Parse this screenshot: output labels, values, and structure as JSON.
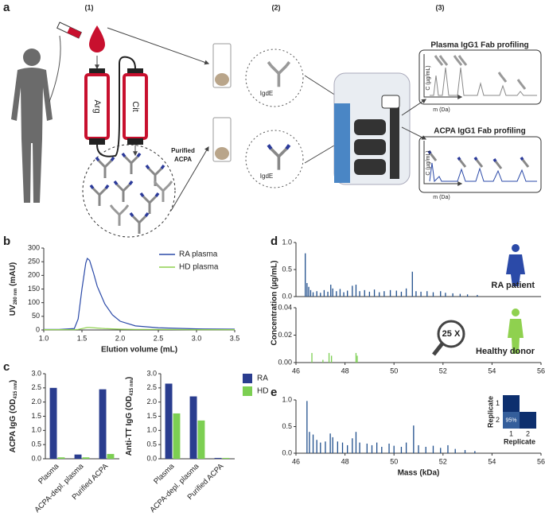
{
  "panel_labels": [
    "a",
    "b",
    "c",
    "d",
    "e"
  ],
  "schematic": {
    "steps": [
      "(1)",
      "(2)",
      "(3)"
    ],
    "columns": [
      "Arg",
      "Cit"
    ],
    "purified": [
      "Purified",
      "ACPA"
    ],
    "enzyme": [
      "IgdE",
      "IgdE"
    ],
    "profiles": [
      {
        "title": "Plasma IgG1 Fab profiling",
        "ylabel": "C (µg/mL)",
        "xlabel": "m (Da)"
      },
      {
        "title": "ACPA IgG1 Fab profiling",
        "ylabel": "C (µg/mL)",
        "xlabel": "m (Da)"
      }
    ]
  },
  "chart_data": [
    {
      "type": "line",
      "xlabel": "Elution volume (mL)",
      "ylabel": {
        "text": "UV",
        "sub": "280 nm",
        "suffix": " (mAU)"
      },
      "x": [
        1.0,
        1.2,
        1.4,
        1.45,
        1.5,
        1.55,
        1.57,
        1.6,
        1.65,
        1.7,
        1.8,
        1.9,
        2.0,
        2.2,
        2.5,
        3.0,
        3.5
      ],
      "series": [
        {
          "name": "RA plasma",
          "color": "#2b4aa8",
          "values": [
            2,
            2,
            5,
            40,
            150,
            245,
            262,
            255,
            210,
            160,
            95,
            55,
            32,
            15,
            8,
            4,
            3
          ]
        },
        {
          "name": "HD plasma",
          "color": "#8fd14f",
          "values": [
            1,
            1,
            1,
            2,
            5,
            8,
            9,
            9,
            8,
            7,
            5,
            4,
            3,
            2,
            2,
            1,
            1
          ]
        }
      ],
      "xlim": [
        1.0,
        3.5
      ],
      "ylim": [
        0,
        300
      ],
      "xticks": [
        {
          "value": 1,
          "label": "1.0"
        },
        {
          "value": 1.5,
          "label": "1.5"
        },
        {
          "value": 2,
          "label": "2.0"
        },
        {
          "value": 2.5,
          "label": "2.5"
        },
        {
          "value": 3,
          "label": "3.0"
        },
        {
          "value": 3.5,
          "label": "3.5"
        }
      ],
      "yticks": [
        0,
        50,
        100,
        150,
        200,
        250,
        300
      ],
      "legend": "upper right"
    },
    {
      "type": "bar",
      "ylabel": {
        "text": "ACPA IgG (OD",
        "sub": "415 nm",
        "suffix": ")"
      },
      "categories": [
        "Plasma",
        "ACPA-depl. plasma",
        "Purified ACPA"
      ],
      "series": [
        {
          "color": "#2a3d8f",
          "values": [
            2.5,
            0.15,
            2.45
          ]
        },
        {
          "color": "#7ccf52",
          "values": [
            0.05,
            0.05,
            0.17
          ]
        }
      ],
      "ylim": [
        0,
        3
      ],
      "yticks": [
        {
          "value": 0,
          "label": "0.0"
        },
        {
          "value": 0.5,
          "label": "0.5"
        },
        {
          "value": 1,
          "label": "1.0"
        },
        {
          "value": 1.5,
          "label": "1.5"
        },
        {
          "value": 2,
          "label": "2.0"
        },
        {
          "value": 2.5,
          "label": "2.5"
        },
        {
          "value": 3,
          "label": "3.0"
        }
      ]
    },
    {
      "type": "bar",
      "ylabel": {
        "text": "Anti-TT IgG (OD",
        "sub": "415 nm",
        "suffix": ")"
      },
      "categories": [
        "Plasma",
        "ACPA-depl. plasma",
        "Purified ACPA"
      ],
      "series": [
        {
          "name": "RA",
          "color": "#2a3d8f",
          "values": [
            2.65,
            2.2,
            0.03
          ]
        },
        {
          "name": "HD",
          "color": "#7ccf52",
          "values": [
            1.6,
            1.35,
            0.03
          ]
        }
      ],
      "ylim": [
        0,
        3
      ],
      "yticks": [
        {
          "value": 0,
          "label": "0.0"
        },
        {
          "value": 0.5,
          "label": "0.5"
        },
        {
          "value": 1,
          "label": "1.0"
        },
        {
          "value": 1.5,
          "label": "1.5"
        },
        {
          "value": 2,
          "label": "2.0"
        },
        {
          "value": 2.5,
          "label": "2.5"
        },
        {
          "value": 3,
          "label": "3.0"
        }
      ],
      "legend": "upper right"
    },
    {
      "type": "stem",
      "ylabel": "Concentration (µg/mL)",
      "annotations": [
        "RA patient"
      ],
      "color": "#1f4e8c",
      "x": [
        46.38,
        46.45,
        46.52,
        46.6,
        46.7,
        46.85,
        47.0,
        47.15,
        47.3,
        47.42,
        47.5,
        47.65,
        47.8,
        47.95,
        48.1,
        48.3,
        48.45,
        48.6,
        48.8,
        49.0,
        49.2,
        49.4,
        49.6,
        49.85,
        50.1,
        50.3,
        50.5,
        50.75,
        50.9,
        51.1,
        51.35,
        51.6,
        51.9,
        52.1,
        52.4,
        52.7,
        53.0,
        53.4
      ],
      "values": [
        0.8,
        0.25,
        0.18,
        0.12,
        0.08,
        0.1,
        0.07,
        0.12,
        0.09,
        0.22,
        0.15,
        0.1,
        0.14,
        0.08,
        0.11,
        0.2,
        0.22,
        0.1,
        0.12,
        0.09,
        0.13,
        0.08,
        0.1,
        0.12,
        0.11,
        0.09,
        0.15,
        0.46,
        0.1,
        0.09,
        0.1,
        0.08,
        0.1,
        0.07,
        0.06,
        0.05,
        0.04,
        0.03
      ],
      "xlim": [
        46,
        56
      ],
      "ylim": [
        0,
        1
      ],
      "yticks": [
        {
          "value": 0,
          "label": "0.0"
        },
        {
          "value": 0.5,
          "label": "0.5"
        },
        {
          "value": 1,
          "label": "1.0"
        }
      ]
    },
    {
      "type": "stem",
      "annotations": [
        "25 X",
        "Healthy donor"
      ],
      "color": "#7ccf52",
      "x": [
        46.65,
        47.1,
        47.35,
        47.45,
        48.45,
        48.5
      ],
      "values": [
        0.007,
        0.002,
        0.007,
        0.005,
        0.007,
        0.005
      ],
      "xlim": [
        46,
        56
      ],
      "ylim": [
        0,
        0.04
      ],
      "xticks": [
        46,
        48,
        50,
        52,
        54,
        56
      ],
      "yticks": [
        {
          "value": 0,
          "label": "0.00"
        },
        {
          "value": 0.02,
          "label": "0.02"
        },
        {
          "value": 0.04,
          "label": "0.04"
        }
      ]
    },
    {
      "type": "stem",
      "xlabel": "Mass (kDa)",
      "color": "#1f4e8c",
      "x": [
        46.45,
        46.55,
        46.7,
        46.85,
        47.0,
        47.2,
        47.4,
        47.5,
        47.7,
        47.9,
        48.1,
        48.3,
        48.45,
        48.6,
        48.9,
        49.1,
        49.3,
        49.5,
        49.8,
        50.0,
        50.3,
        50.5,
        50.8,
        51.0,
        51.3,
        51.6,
        51.9,
        52.2,
        52.5,
        52.9,
        53.3
      ],
      "values": [
        0.98,
        0.4,
        0.35,
        0.25,
        0.2,
        0.22,
        0.37,
        0.3,
        0.22,
        0.2,
        0.15,
        0.28,
        0.4,
        0.2,
        0.18,
        0.15,
        0.2,
        0.12,
        0.18,
        0.14,
        0.12,
        0.2,
        0.52,
        0.15,
        0.12,
        0.14,
        0.1,
        0.15,
        0.08,
        0.06,
        0.04
      ],
      "xlim": [
        46,
        56
      ],
      "ylim": [
        0,
        1
      ],
      "xticks": [
        46,
        48,
        50,
        52,
        54,
        56
      ],
      "yticks": [
        {
          "value": 0,
          "label": "0.0"
        },
        {
          "value": 0.5,
          "label": "0.5"
        },
        {
          "value": 1,
          "label": "1.0"
        }
      ]
    },
    {
      "type": "heatmap",
      "xlabel": "Replicate",
      "ylabel": "Replicate",
      "xcategories": [
        "1",
        "2"
      ],
      "ycategories": [
        "1",
        "2"
      ],
      "values": [
        [
          100,
          null
        ],
        [
          95,
          100
        ]
      ],
      "value_labels": [
        [
          null,
          null
        ],
        [
          "95%",
          null
        ]
      ]
    }
  ]
}
